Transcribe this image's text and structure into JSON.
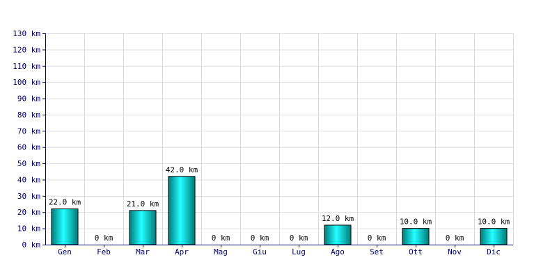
{
  "chart_data": {
    "type": "bar",
    "categories": [
      "Gen",
      "Feb",
      "Mar",
      "Apr",
      "Mag",
      "Giu",
      "Lug",
      "Ago",
      "Set",
      "Ott",
      "Nov",
      "Dic"
    ],
    "values": [
      22,
      0,
      21,
      42,
      0,
      0,
      0,
      12,
      0,
      10,
      0,
      10
    ],
    "value_labels": [
      "22.0 km",
      "0 km",
      "21.0 km",
      "42.0 km",
      "0 km",
      "0 km",
      "0 km",
      "12.0 km",
      "0 km",
      "10.0 km",
      "0 km",
      "10.0 km"
    ],
    "y_ticks": [
      0,
      10,
      20,
      30,
      40,
      50,
      60,
      70,
      80,
      90,
      100,
      110,
      120,
      130
    ],
    "y_tick_labels": [
      "0 km",
      "10 km",
      "20 km",
      "30 km",
      "40 km",
      "50 km",
      "60 km",
      "70 km",
      "80 km",
      "90 km",
      "100 km",
      "110 km",
      "120 km",
      "130 km"
    ],
    "ylim": [
      0,
      130
    ],
    "grid": true,
    "bar_gradient": [
      "#007a7a",
      "#22ffff",
      "#007a7a"
    ],
    "bar_stroke": "#000000",
    "axis_color": "#000066",
    "grid_color": "#dcdcdc"
  }
}
